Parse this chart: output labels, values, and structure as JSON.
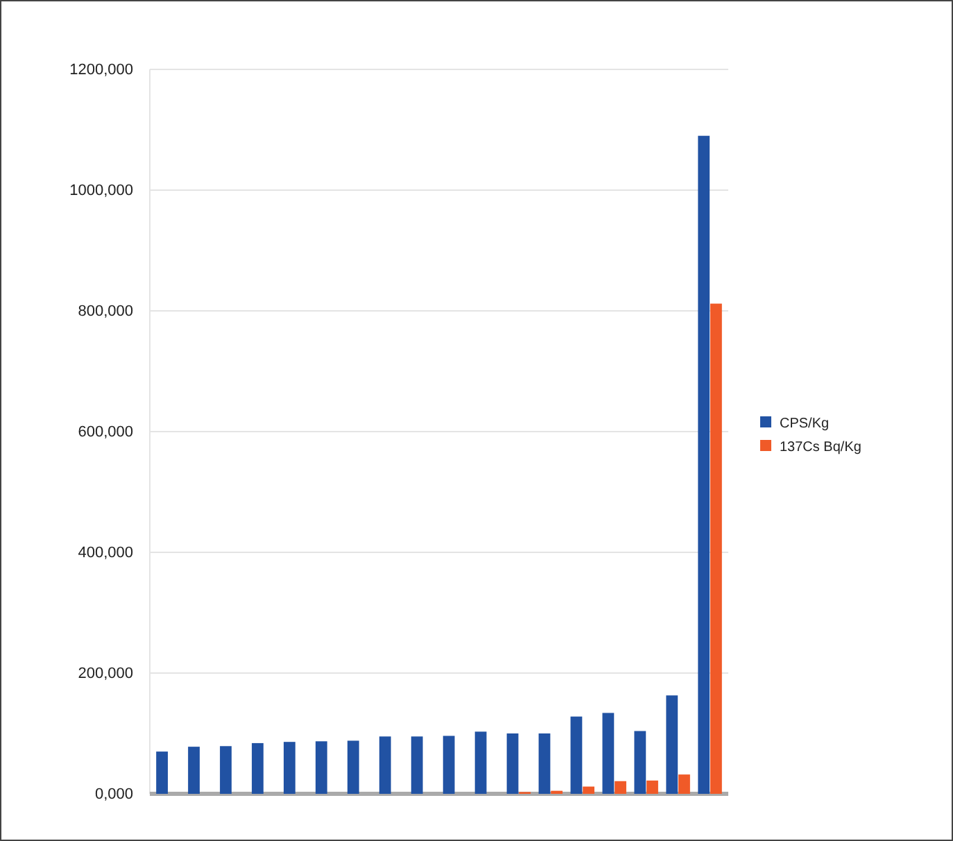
{
  "chart_data": {
    "type": "bar",
    "categories": [
      null,
      null,
      null,
      null,
      null,
      null,
      null,
      null,
      null,
      null,
      null,
      null,
      null,
      null,
      null,
      null,
      null,
      null
    ],
    "series": [
      {
        "name": "CPS/Kg",
        "color": "#2152a3",
        "values": [
          70000,
          78000,
          79000,
          84000,
          86000,
          87000,
          88000,
          95000,
          95000,
          96000,
          103000,
          100000,
          100000,
          128000,
          134000,
          104000,
          163000,
          1090000
        ]
      },
      {
        "name": "137Cs Bq/Kg",
        "color": "#f05a28",
        "values": [
          0,
          0,
          0,
          0,
          0,
          0,
          0,
          0,
          0,
          0,
          0,
          3000,
          5000,
          12000,
          21000,
          22000,
          32000,
          812000
        ]
      }
    ],
    "ylim": [
      0,
      1200000
    ],
    "yticks": [
      {
        "value": 0,
        "label": "0,000"
      },
      {
        "value": 200000,
        "label": "200,000"
      },
      {
        "value": 400000,
        "label": "400,000"
      },
      {
        "value": 600000,
        "label": "600,000"
      },
      {
        "value": 800000,
        "label": "800,000"
      },
      {
        "value": 1000000,
        "label": "1000,000"
      },
      {
        "value": 1200000,
        "label": "1200,000"
      }
    ],
    "grid": "y",
    "legend": "right"
  }
}
